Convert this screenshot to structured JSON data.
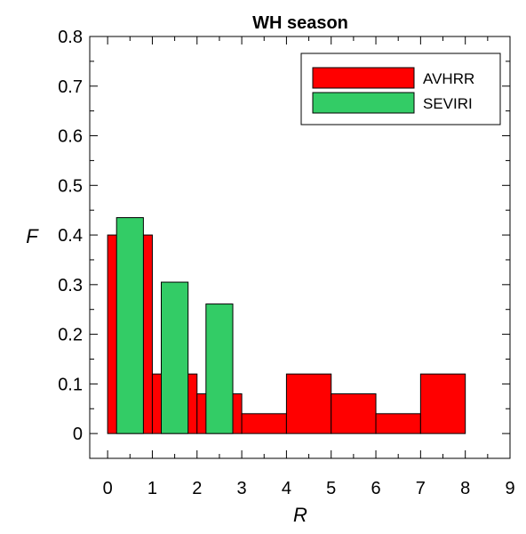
{
  "chart_data": {
    "type": "bar",
    "title": "WH season",
    "xlabel": "R",
    "ylabel": "F",
    "xlim": [
      -0.4,
      9
    ],
    "ylim": [
      -0.05,
      0.8
    ],
    "xticks": [
      0,
      1,
      2,
      3,
      4,
      5,
      6,
      7,
      8,
      9
    ],
    "yticks": [
      0,
      0.1,
      0.2,
      0.3,
      0.4,
      0.5,
      0.6,
      0.7,
      0.8
    ],
    "ytick_labels": [
      "0",
      "0.1",
      "0.2",
      "0.3",
      "0.4",
      "0.5",
      "0.6",
      "0.7",
      "0.8"
    ],
    "legend_position": "top-right",
    "grid": false,
    "series": [
      {
        "name": "AVHRR",
        "color": "#ff0000",
        "bars": [
          {
            "x0": 0,
            "x1": 1,
            "value": 0.4
          },
          {
            "x0": 1,
            "x1": 2,
            "value": 0.12
          },
          {
            "x0": 2,
            "x1": 3,
            "value": 0.08
          },
          {
            "x0": 3,
            "x1": 4,
            "value": 0.04
          },
          {
            "x0": 4,
            "x1": 5,
            "value": 0.12
          },
          {
            "x0": 5,
            "x1": 6,
            "value": 0.08
          },
          {
            "x0": 6,
            "x1": 7,
            "value": 0.04
          },
          {
            "x0": 7,
            "x1": 8,
            "value": 0.12
          }
        ]
      },
      {
        "name": "SEVIRI",
        "color": "#33cc66",
        "bars": [
          {
            "x0": 0.2,
            "x1": 0.8,
            "value": 0.435
          },
          {
            "x0": 1.2,
            "x1": 1.8,
            "value": 0.305
          },
          {
            "x0": 2.2,
            "x1": 2.8,
            "value": 0.261
          }
        ]
      }
    ]
  }
}
